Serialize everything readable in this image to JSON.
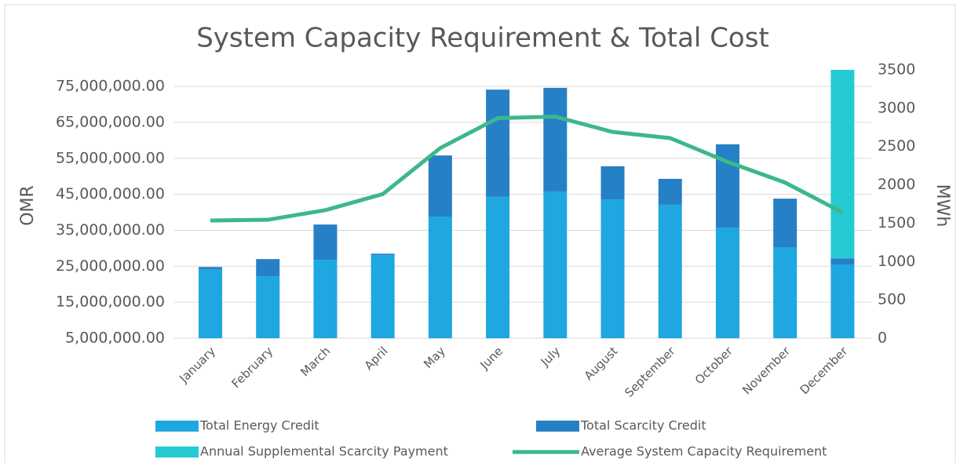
{
  "chart_data": {
    "type": "bar",
    "title": "System Capacity Requirement & Total Cost",
    "y_label": "OMR",
    "y2_label": "MWh",
    "stacked": true,
    "categories": [
      "January",
      "February",
      "March",
      "April",
      "May",
      "June",
      "July",
      "August",
      "September",
      "October",
      "November",
      "December"
    ],
    "series": [
      {
        "name": "Total Energy Credit",
        "color": "#1ea7e1",
        "values": [
          24200000,
          22200000,
          26800000,
          28100000,
          38800000,
          44300000,
          45800000,
          43600000,
          42100000,
          35700000,
          30300000,
          25500000
        ]
      },
      {
        "name": "Total Scarcity Credit",
        "color": "#2680c6",
        "values": [
          600000,
          4800000,
          9800000,
          400000,
          17000000,
          29800000,
          28800000,
          9200000,
          7200000,
          23200000,
          13500000,
          1700000
        ]
      },
      {
        "name": "Annual Supplemental Scarcity Payment",
        "color": "#26cad3",
        "values": [
          null,
          null,
          null,
          null,
          null,
          null,
          null,
          null,
          null,
          null,
          null,
          52400000
        ]
      },
      {
        "name": "Average System Capacity Requirement",
        "color": "#3cb88a",
        "type": "line",
        "axis": "y2",
        "values": [
          1535,
          1545,
          1670,
          1880,
          2480,
          2870,
          2890,
          2690,
          2610,
          2300,
          2030,
          1640
        ]
      }
    ],
    "ylim": [
      5000000,
      79600000
    ],
    "yticks": [
      {
        "value": 5000000,
        "label": "5,000,000.00"
      },
      {
        "value": 15000000,
        "label": "15,000,000.00"
      },
      {
        "value": 25000000,
        "label": "25,000,000.00"
      },
      {
        "value": 35000000,
        "label": "35,000,000.00"
      },
      {
        "value": 45000000,
        "label": "45,000,000.00"
      },
      {
        "value": 55000000,
        "label": "55,000,000.00"
      },
      {
        "value": 65000000,
        "label": "65,000,000.00"
      },
      {
        "value": 75000000,
        "label": "75,000,000.00"
      }
    ],
    "y2lim": [
      0,
      3500
    ],
    "y2ticks": [
      0,
      500,
      1000,
      1500,
      2000,
      2500,
      3000,
      3500
    ],
    "grid": true
  }
}
